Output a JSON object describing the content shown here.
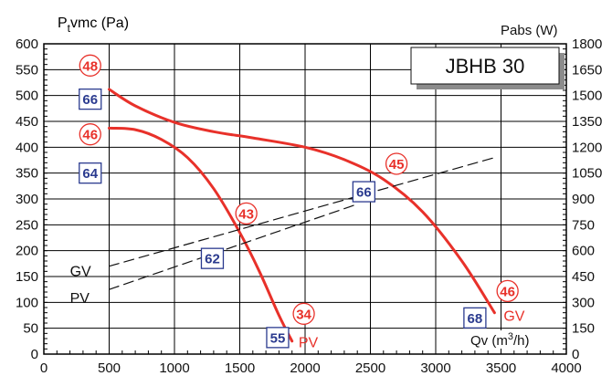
{
  "colors": {
    "red": "#e8312a",
    "blue": "#2b3b8f",
    "grid": "#000000",
    "ink": "#111111"
  },
  "chart_data": {
    "type": "line",
    "title": "JBHB 30",
    "x_axis": {
      "label_prefix": "Qv (m",
      "label_sup": "3",
      "label_suffix": "/h)",
      "range": [
        0,
        4000
      ],
      "ticks": [
        {
          "v": 0,
          "label": "0"
        },
        {
          "v": 500,
          "label": "500"
        },
        {
          "v": 1000,
          "label": "1000"
        },
        {
          "v": 1500,
          "label": "1500"
        },
        {
          "v": 2000,
          "label": "2000"
        },
        {
          "v": 2500,
          "label": "2500"
        },
        {
          "v": 3000,
          "label": "3000"
        },
        {
          "v": 3500,
          "label": "3500"
        },
        {
          "v": 4000,
          "label": "4000"
        }
      ]
    },
    "y_axis_left": {
      "label_main": "P",
      "label_sub": "t",
      "label_rest": "vmc (Pa)",
      "range": [
        0,
        600
      ],
      "ticks": [
        {
          "v": 0,
          "label": "0"
        },
        {
          "v": 50,
          "label": "50"
        },
        {
          "v": 100,
          "label": "100"
        },
        {
          "v": 150,
          "label": "150"
        },
        {
          "v": 200,
          "label": "200"
        },
        {
          "v": 250,
          "label": "250"
        },
        {
          "v": 300,
          "label": "300"
        },
        {
          "v": 350,
          "label": "350"
        },
        {
          "v": 400,
          "label": "400"
        },
        {
          "v": 450,
          "label": "450"
        },
        {
          "v": 500,
          "label": "500"
        },
        {
          "v": 550,
          "label": "550"
        },
        {
          "v": 600,
          "label": "600"
        }
      ]
    },
    "y_axis_right": {
      "label": "Pabs (W)",
      "range": [
        0,
        1800
      ],
      "ticks": [
        {
          "v": 0,
          "label": "0"
        },
        {
          "v": 150,
          "label": "150"
        },
        {
          "v": 300,
          "label": "300"
        },
        {
          "v": 450,
          "label": "450"
        },
        {
          "v": 600,
          "label": "600"
        },
        {
          "v": 750,
          "label": "750"
        },
        {
          "v": 900,
          "label": "900"
        },
        {
          "v": 1050,
          "label": "1050"
        },
        {
          "v": 1200,
          "label": "1200"
        },
        {
          "v": 1350,
          "label": "1350"
        },
        {
          "v": 1500,
          "label": "1500"
        },
        {
          "v": 1650,
          "label": "1650"
        },
        {
          "v": 1800,
          "label": "1800"
        }
      ]
    },
    "grid": true,
    "series": [
      {
        "name": "GV",
        "axis": "left",
        "style": "solid",
        "color": "#e8312a",
        "x": [
          500,
          700,
          1000,
          1300,
          1600,
          2000,
          2300,
          2600,
          2900,
          3200,
          3450
        ],
        "y": [
          512,
          480,
          448,
          430,
          418,
          400,
          376,
          338,
          275,
          180,
          80
        ]
      },
      {
        "name": "PV",
        "axis": "left",
        "style": "solid",
        "color": "#e8312a",
        "x": [
          500,
          700,
          900,
          1100,
          1300,
          1500,
          1650,
          1800,
          1900
        ],
        "y": [
          437,
          434,
          415,
          380,
          320,
          235,
          160,
          75,
          25
        ]
      },
      {
        "name": "GV",
        "axis": "right",
        "style": "dashed",
        "color": "#111111",
        "x": [
          500,
          3450
        ],
        "y": [
          510,
          1140
        ]
      },
      {
        "name": "PV",
        "axis": "right",
        "style": "dashed",
        "color": "#111111",
        "x": [
          500,
          2400
        ],
        "y": [
          375,
          870
        ]
      }
    ],
    "markers": [
      {
        "kind": "circle",
        "text": "48",
        "x": 355,
        "y": 558
      },
      {
        "kind": "box",
        "text": "66",
        "x": 355,
        "y": 493
      },
      {
        "kind": "circle",
        "text": "46",
        "x": 355,
        "y": 425
      },
      {
        "kind": "box",
        "text": "64",
        "x": 355,
        "y": 350
      },
      {
        "kind": "circle",
        "text": "45",
        "x": 2700,
        "y": 368
      },
      {
        "kind": "box",
        "text": "66",
        "x": 2450,
        "y": 314
      },
      {
        "kind": "circle",
        "text": "43",
        "x": 1550,
        "y": 272
      },
      {
        "kind": "box",
        "text": "62",
        "x": 1290,
        "y": 185
      },
      {
        "kind": "circle",
        "text": "34",
        "x": 1990,
        "y": 78
      },
      {
        "kind": "box",
        "text": "55",
        "x": 1790,
        "y": 32
      },
      {
        "kind": "circle",
        "text": "46",
        "x": 3550,
        "y": 122
      },
      {
        "kind": "box",
        "text": "68",
        "x": 3300,
        "y": 70
      }
    ],
    "curve_labels": [
      {
        "text": "GV",
        "x": 3520,
        "y": 73,
        "color": "#e8312a"
      },
      {
        "text": "PV",
        "x": 1950,
        "y": 22,
        "color": "#e8312a"
      },
      {
        "text": "GV",
        "x": 200,
        "y": 160,
        "color": "#111111"
      },
      {
        "text": "PV",
        "x": 200,
        "y": 108,
        "color": "#111111"
      }
    ]
  }
}
